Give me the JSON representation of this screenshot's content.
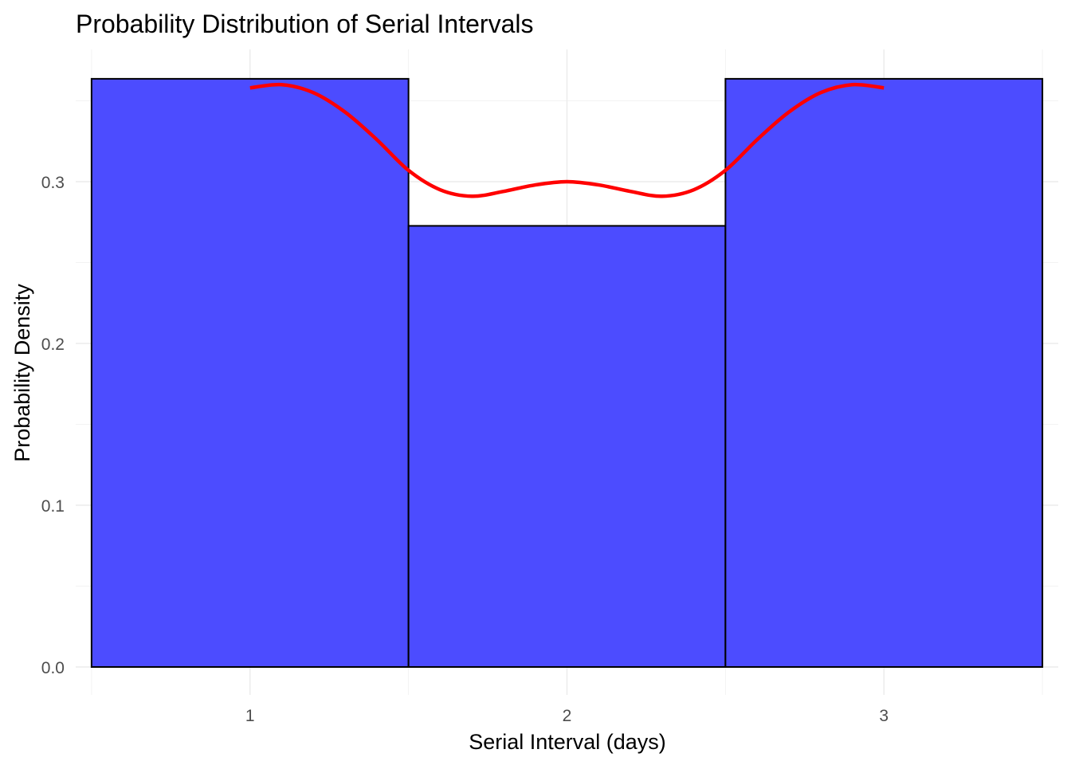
{
  "chart_data": {
    "type": "bar",
    "title": "Probability Distribution of Serial Intervals",
    "xlabel": "Serial Interval (days)",
    "ylabel": "Probability Density",
    "categories": [
      "1",
      "2",
      "3"
    ],
    "x": [
      1,
      2,
      3
    ],
    "bin_width": 1,
    "values": [
      0.3636,
      0.2727,
      0.3636
    ],
    "xlim": [
      0.5,
      3.5
    ],
    "ylim": [
      0,
      0.36
    ],
    "x_ticks": [
      1,
      2,
      3
    ],
    "y_ticks": [
      0.0,
      0.1,
      0.2,
      0.3
    ],
    "y_tick_labels": [
      "0.0",
      "0.1",
      "0.2",
      "0.3"
    ],
    "grid": true,
    "legend": "none",
    "density_curve": {
      "x": [
        1.0,
        1.1,
        1.2,
        1.3,
        1.4,
        1.5,
        1.6,
        1.7,
        1.8,
        1.9,
        2.0,
        2.1,
        2.2,
        2.3,
        2.4,
        2.5,
        2.6,
        2.7,
        2.8,
        2.9,
        3.0
      ],
      "y": [
        0.358,
        0.36,
        0.355,
        0.343,
        0.326,
        0.307,
        0.295,
        0.291,
        0.294,
        0.298,
        0.3,
        0.298,
        0.294,
        0.291,
        0.295,
        0.307,
        0.326,
        0.343,
        0.355,
        0.36,
        0.358
      ]
    },
    "colors": {
      "bar_fill": "#4c4cff",
      "bar_edge": "#000000",
      "curve": "#ff0000"
    }
  }
}
